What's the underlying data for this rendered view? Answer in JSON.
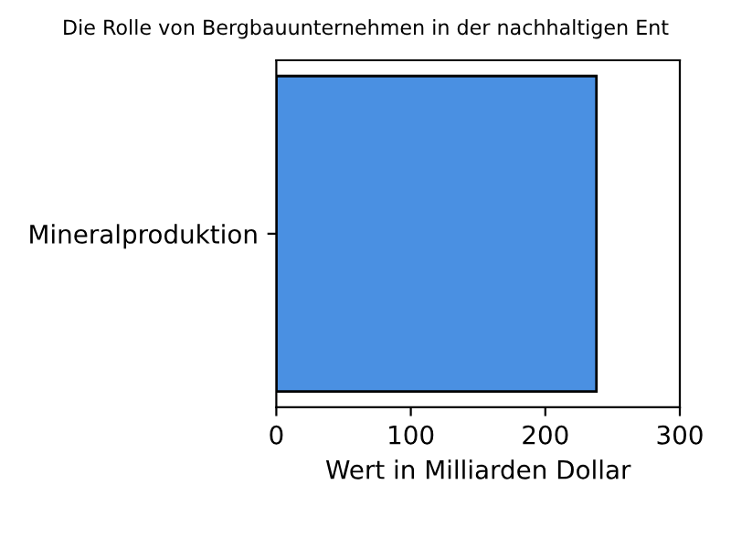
{
  "chart_data": {
    "type": "bar",
    "orientation": "horizontal",
    "title": "Die Rolle von Bergbauunternehmen in der nachhaltigen Ent",
    "xlabel": "Wert in Milliarden Dollar",
    "categories": [
      "Mineralproduktion"
    ],
    "values": [
      238
    ],
    "color": "#4a90e2",
    "xlim": [
      0,
      300
    ],
    "xticks": [
      0,
      100,
      200,
      300
    ],
    "grid": false,
    "legend": false
  }
}
